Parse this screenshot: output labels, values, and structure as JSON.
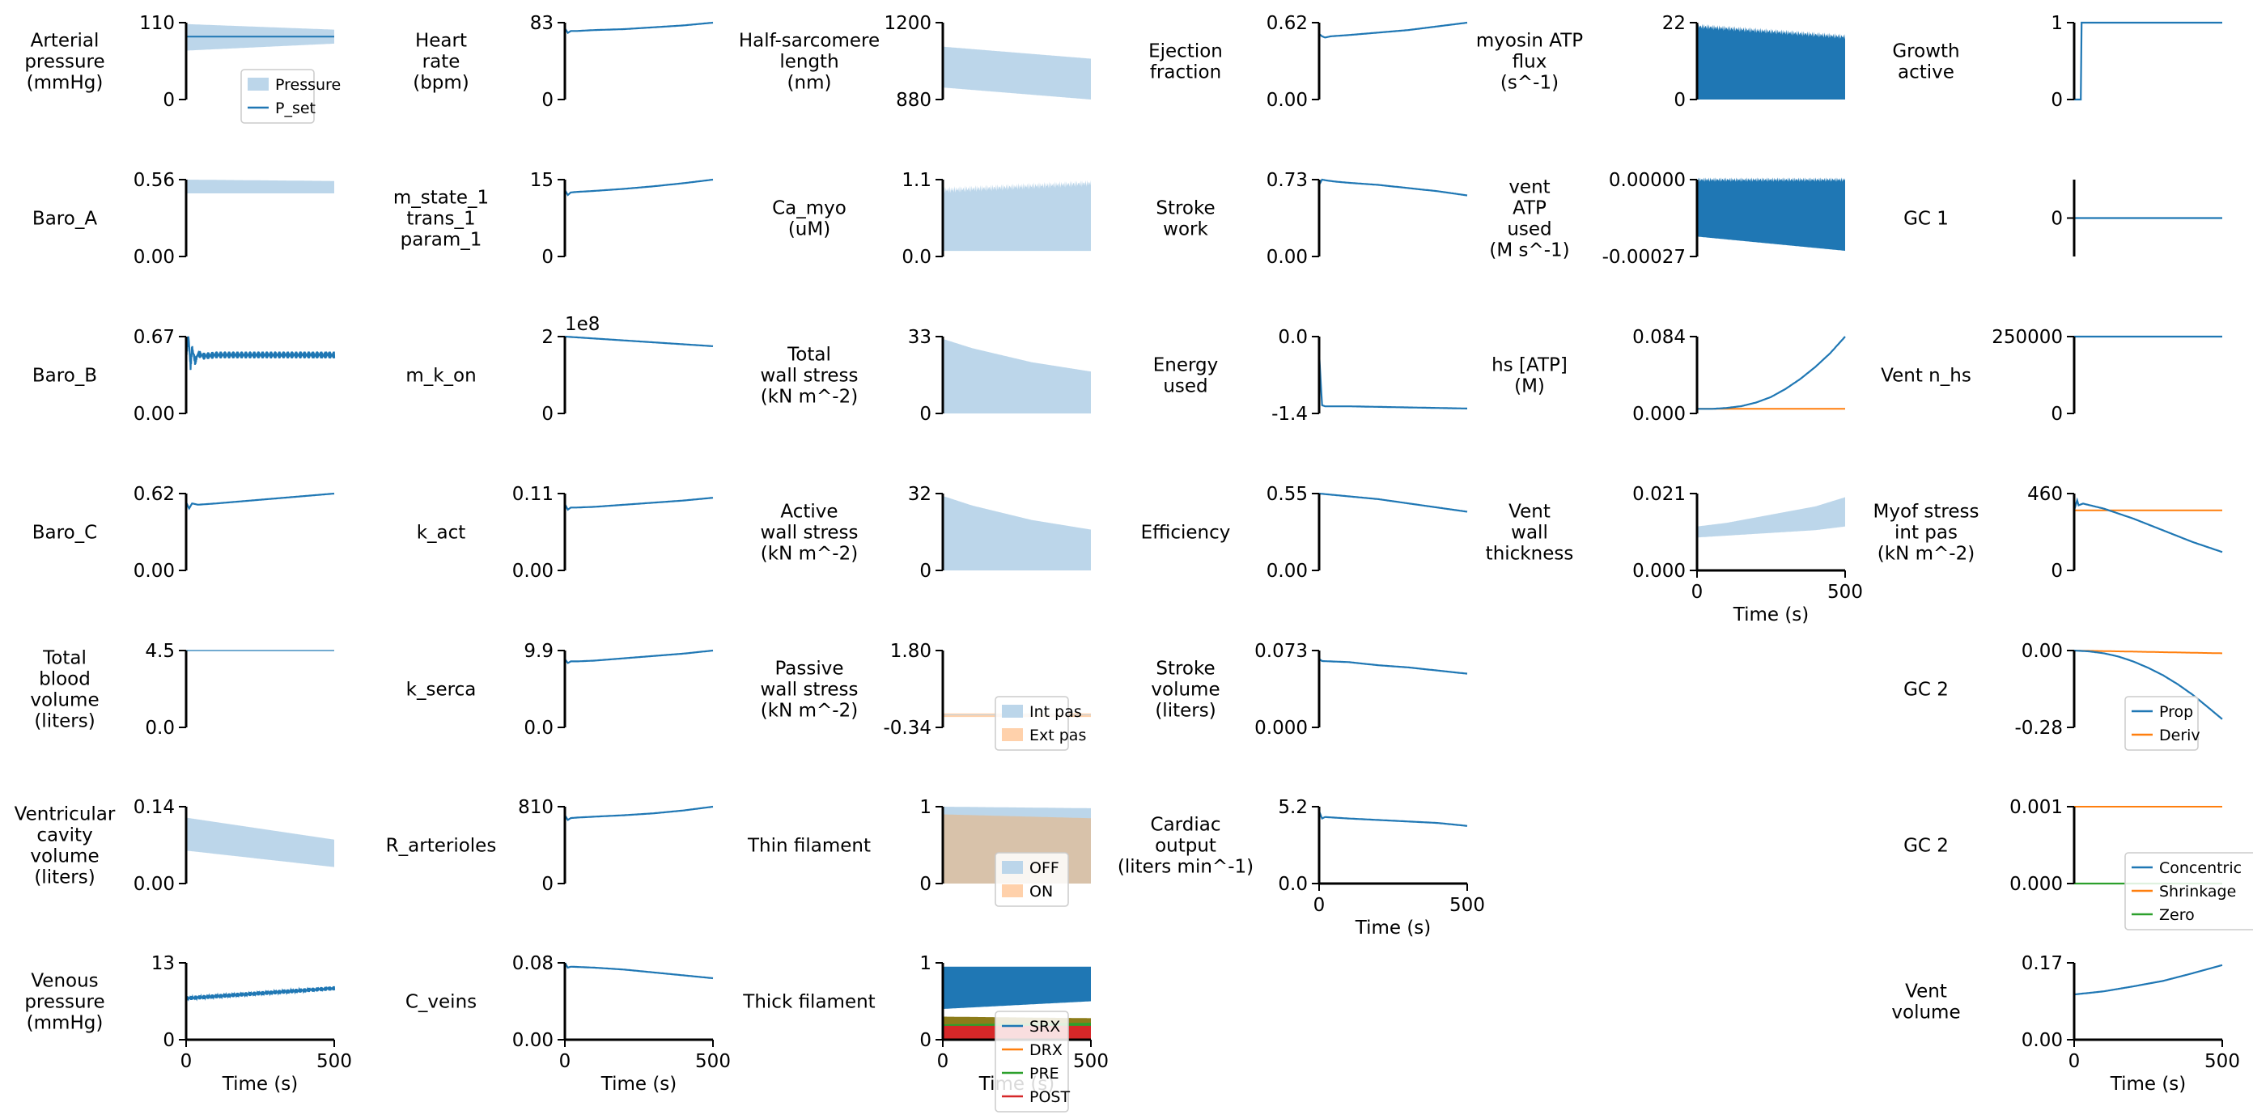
{
  "figure": {
    "x_label": "Time (s)",
    "x_ticks": [
      0,
      500
    ],
    "colors": {
      "blue": "#1f77b4",
      "light_blue": "#bcd6ea",
      "orange": "#ff7f0e",
      "light_orange": "#ffd1ab",
      "green": "#2ca02c",
      "red": "#d62728",
      "olive": "#8c7c1a",
      "tan": "#d8c2aa"
    }
  },
  "chart_data": [
    {
      "id": "arterial_pressure",
      "type": "area",
      "label": "Arterial\npressure\n(mmHg)",
      "yticks": [
        "0",
        "110"
      ],
      "ylim": [
        0,
        110
      ],
      "x": [
        0,
        500
      ],
      "lower": [
        70,
        80
      ],
      "upper": [
        108,
        100
      ],
      "line": {
        "y": [
          90,
          90
        ]
      },
      "legend": [
        "Pressure",
        "P_set"
      ],
      "legend_kinds": [
        "band",
        "line"
      ]
    },
    {
      "id": "baro_a",
      "type": "area",
      "label": "Baro_A",
      "yticks": [
        "0.00",
        "0.56"
      ],
      "ylim": [
        0,
        0.56
      ],
      "x": [
        0,
        500
      ],
      "lower": [
        0.46,
        0.46
      ],
      "upper": [
        0.56,
        0.55
      ]
    },
    {
      "id": "baro_b",
      "type": "line",
      "label": "Baro_B",
      "yticks": [
        "0.00",
        "0.67"
      ],
      "ylim": [
        0,
        0.67
      ],
      "x": [
        0,
        8,
        15,
        20,
        30,
        40,
        60,
        100,
        500
      ],
      "y": [
        0.5,
        0.67,
        0.4,
        0.58,
        0.45,
        0.52,
        0.5,
        0.51,
        0.51
      ],
      "noise_amp": 0.03
    },
    {
      "id": "baro_c",
      "type": "line",
      "label": "Baro_C",
      "yticks": [
        "0.00",
        "0.62"
      ],
      "ylim": [
        0,
        0.62
      ],
      "x": [
        0,
        10,
        20,
        40,
        100,
        200,
        300,
        400,
        500
      ],
      "y": [
        0.55,
        0.5,
        0.54,
        0.53,
        0.54,
        0.56,
        0.58,
        0.6,
        0.62
      ]
    },
    {
      "id": "total_blood_volume",
      "type": "line",
      "label": "Total\nblood\nvolume\n(liters)",
      "yticks": [
        "0.0",
        "4.5"
      ],
      "ylim": [
        0,
        4.5
      ],
      "x": [
        0,
        500
      ],
      "y": [
        4.5,
        4.5
      ],
      "thin": true
    },
    {
      "id": "ventricular_cavity_volume",
      "type": "area",
      "label": "Ventricular\ncavity\nvolume\n(liters)",
      "yticks": [
        "0.00",
        "0.14"
      ],
      "ylim": [
        0,
        0.14
      ],
      "x": [
        0,
        500
      ],
      "lower": [
        0.06,
        0.03
      ],
      "upper": [
        0.12,
        0.08
      ]
    },
    {
      "id": "venous_pressure",
      "type": "line",
      "label": "Venous\npressure\n(mmHg)",
      "yticks": [
        "0",
        "13"
      ],
      "ylim": [
        0,
        13
      ],
      "x": [
        0,
        500
      ],
      "y": [
        7,
        8.7
      ],
      "noise_amp": 0.35
    },
    {
      "id": "heart_rate",
      "type": "line",
      "label": "Heart\nrate\n(bpm)",
      "yticks": [
        "0",
        "83"
      ],
      "ylim": [
        0,
        83
      ],
      "x": [
        0,
        10,
        20,
        40,
        100,
        200,
        300,
        400,
        500
      ],
      "y": [
        77,
        72,
        74,
        74,
        75,
        76,
        78,
        80,
        83
      ]
    },
    {
      "id": "m_state_1",
      "type": "line",
      "label": "m_state_1\ntrans_1\nparam_1",
      "yticks": [
        "0",
        "15"
      ],
      "ylim": [
        0,
        15
      ],
      "x": [
        0,
        10,
        20,
        40,
        100,
        200,
        300,
        400,
        500
      ],
      "y": [
        13,
        12,
        12.5,
        12.6,
        12.8,
        13.2,
        13.7,
        14.3,
        15
      ]
    },
    {
      "id": "m_k_on",
      "type": "line",
      "label": "m_k_on",
      "yticks": [
        "0",
        "2"
      ],
      "ylim": [
        0,
        2
      ],
      "exponent": "1e8",
      "x": [
        0,
        100,
        200,
        300,
        400,
        500
      ],
      "y": [
        2,
        1.95,
        1.9,
        1.85,
        1.8,
        1.75
      ]
    },
    {
      "id": "k_act",
      "type": "line",
      "label": "k_act",
      "yticks": [
        "0.00",
        "0.11"
      ],
      "ylim": [
        0,
        0.11
      ],
      "x": [
        0,
        10,
        20,
        40,
        100,
        200,
        300,
        400,
        500
      ],
      "y": [
        0.095,
        0.087,
        0.09,
        0.09,
        0.091,
        0.094,
        0.097,
        0.1,
        0.104
      ]
    },
    {
      "id": "k_serca",
      "type": "line",
      "label": "k_serca",
      "yticks": [
        "0.0",
        "9.9"
      ],
      "ylim": [
        0,
        9.9
      ],
      "x": [
        0,
        10,
        20,
        40,
        100,
        200,
        300,
        400,
        500
      ],
      "y": [
        8.8,
        8.3,
        8.5,
        8.5,
        8.6,
        8.9,
        9.2,
        9.5,
        9.9
      ]
    },
    {
      "id": "r_arterioles",
      "type": "line",
      "label": "R_arterioles",
      "yticks": [
        "0",
        "810"
      ],
      "ylim": [
        0,
        810
      ],
      "x": [
        0,
        10,
        20,
        40,
        100,
        200,
        300,
        400,
        500
      ],
      "y": [
        720,
        670,
        690,
        695,
        705,
        720,
        740,
        770,
        810
      ]
    },
    {
      "id": "c_veins",
      "type": "line",
      "label": "C_veins",
      "yticks": [
        "0.00",
        "0.08"
      ],
      "ylim": [
        0,
        0.08
      ],
      "x": [
        0,
        10,
        20,
        100,
        200,
        300,
        400,
        500
      ],
      "y": [
        0.08,
        0.075,
        0.076,
        0.075,
        0.073,
        0.07,
        0.067,
        0.064
      ]
    },
    {
      "id": "half_sarcomere_length",
      "type": "area",
      "label": "Half-sarcomere\nlength\n(nm)",
      "yticks": [
        "880",
        "1200"
      ],
      "ylim": [
        880,
        1200
      ],
      "x": [
        0,
        500
      ],
      "lower": [
        930,
        880
      ],
      "upper": [
        1100,
        1050
      ]
    },
    {
      "id": "ca_myo",
      "type": "area",
      "label": "Ca_myo\n(uM)",
      "yticks": [
        "0.0",
        "1.1"
      ],
      "ylim": [
        0,
        1.1
      ],
      "x": [
        0,
        500
      ],
      "lower": [
        0.08,
        0.08
      ],
      "upper": [
        0.95,
        1.05
      ],
      "edge_noise": 0.05
    },
    {
      "id": "total_wall_stress",
      "type": "area",
      "label": "Total\nwall stress\n(kN m^-2)",
      "yticks": [
        "0",
        "33"
      ],
      "ylim": [
        0,
        33
      ],
      "x": [
        0,
        100,
        200,
        300,
        400,
        500
      ],
      "lower": [
        0,
        0,
        0,
        0,
        0,
        0
      ],
      "upper": [
        32,
        28,
        25,
        22,
        20,
        18
      ]
    },
    {
      "id": "active_wall_stress",
      "type": "area",
      "label": "Active\nwall stress\n(kN m^-2)",
      "yticks": [
        "0",
        "32"
      ],
      "ylim": [
        0,
        32
      ],
      "x": [
        0,
        100,
        200,
        300,
        400,
        500
      ],
      "lower": [
        0,
        0,
        0,
        0,
        0,
        0
      ],
      "upper": [
        31,
        27,
        24,
        21,
        19,
        17
      ]
    },
    {
      "id": "passive_wall_stress",
      "type": "area",
      "label": "Passive\nwall stress\n(kN m^-2)",
      "yticks": [
        "-0.34",
        "1.80"
      ],
      "ylim": [
        -0.34,
        1.8
      ],
      "x": [
        0,
        500
      ],
      "bands": [
        {
          "lower": [
            -0.05,
            -0.05
          ],
          "upper": [
            0.05,
            0.05
          ],
          "color": "light_orange"
        },
        {
          "lower": [
            0.0,
            0.0
          ],
          "upper": [
            0.02,
            0.02
          ],
          "color": "light_blue"
        }
      ],
      "legend": [
        "Int pas",
        "Ext pas"
      ],
      "legend_kinds": [
        "band_blue",
        "band_orange"
      ]
    },
    {
      "id": "thin_filament",
      "type": "area",
      "label": "Thin filament",
      "yticks": [
        "0",
        "1"
      ],
      "ylim": [
        0,
        1
      ],
      "x": [
        0,
        500
      ],
      "bands": [
        {
          "lower": [
            0.05,
            0.1
          ],
          "upper": [
            1.0,
            0.98
          ],
          "color": "light_blue"
        },
        {
          "lower": [
            0.0,
            0.0
          ],
          "upper": [
            0.9,
            0.85
          ],
          "color": "tan"
        }
      ],
      "legend": [
        "OFF",
        "ON"
      ],
      "legend_kinds": [
        "band_blue",
        "band_orange"
      ]
    },
    {
      "id": "thick_filament",
      "type": "area",
      "label": "Thick filament",
      "yticks": [
        "0",
        "1"
      ],
      "ylim": [
        0,
        1
      ],
      "x": [
        0,
        500
      ],
      "bands": [
        {
          "lower": [
            0.4,
            0.5
          ],
          "upper": [
            0.95,
            0.95
          ],
          "color": "blue"
        },
        {
          "lower": [
            0.2,
            0.2
          ],
          "upper": [
            0.3,
            0.28
          ],
          "color": "olive"
        },
        {
          "lower": [
            0.15,
            0.15
          ],
          "upper": [
            0.2,
            0.22
          ],
          "color": "green"
        },
        {
          "lower": [
            0.0,
            0.0
          ],
          "upper": [
            0.18,
            0.18
          ],
          "color": "red"
        }
      ],
      "legend": [
        "SRX",
        "DRX",
        "PRE",
        "POST"
      ],
      "legend_kinds": [
        "line_blue",
        "line_orange",
        "line_green",
        "line_red"
      ]
    },
    {
      "id": "ejection_fraction",
      "type": "line",
      "label": "Ejection\nfraction",
      "yticks": [
        "0.00",
        "0.62"
      ],
      "ylim": [
        0,
        0.62
      ],
      "x": [
        0,
        10,
        20,
        40,
        100,
        200,
        300,
        400,
        500
      ],
      "y": [
        0.53,
        0.51,
        0.5,
        0.51,
        0.52,
        0.54,
        0.56,
        0.59,
        0.62
      ]
    },
    {
      "id": "stroke_work",
      "type": "line",
      "label": "Stroke\nwork",
      "yticks": [
        "0.00",
        "0.73"
      ],
      "ylim": [
        0,
        0.73
      ],
      "x": [
        0,
        10,
        30,
        60,
        100,
        200,
        300,
        400,
        500
      ],
      "y": [
        0.68,
        0.73,
        0.72,
        0.71,
        0.7,
        0.68,
        0.65,
        0.62,
        0.58
      ]
    },
    {
      "id": "energy_used",
      "type": "line",
      "label": "Energy\nused",
      "yticks": [
        "-1.4",
        "0.0"
      ],
      "ylim": [
        -1.4,
        0
      ],
      "x": [
        0,
        10,
        20,
        100,
        200,
        300,
        400,
        500
      ],
      "y": [
        -0.3,
        -1.25,
        -1.27,
        -1.27,
        -1.28,
        -1.29,
        -1.3,
        -1.31
      ]
    },
    {
      "id": "efficiency",
      "type": "line",
      "label": "Efficiency",
      "yticks": [
        "0.00",
        "0.55"
      ],
      "ylim": [
        0,
        0.55
      ],
      "x": [
        0,
        50,
        100,
        200,
        300,
        400,
        500
      ],
      "y": [
        0.55,
        0.54,
        0.53,
        0.51,
        0.48,
        0.45,
        0.42
      ]
    },
    {
      "id": "stroke_volume",
      "type": "line",
      "label": "Stroke\nvolume\n(liters)",
      "yticks": [
        "0.000",
        "0.073"
      ],
      "ylim": [
        0,
        0.073
      ],
      "x": [
        0,
        10,
        100,
        200,
        300,
        400,
        500
      ],
      "y": [
        0.065,
        0.063,
        0.062,
        0.059,
        0.057,
        0.054,
        0.051
      ]
    },
    {
      "id": "cardiac_output",
      "type": "line",
      "label": "Cardiac\noutput\n(liters min^-1)",
      "yticks": [
        "0.0",
        "5.2"
      ],
      "ylim": [
        0,
        5.2
      ],
      "x": [
        0,
        10,
        20,
        100,
        200,
        300,
        400,
        500
      ],
      "y": [
        4.9,
        4.4,
        4.5,
        4.4,
        4.3,
        4.2,
        4.1,
        3.9
      ],
      "show_xaxis": true
    },
    {
      "id": "myosin_atp_flux",
      "type": "area",
      "label": "myosin ATP\nflux\n(s^-1)",
      "yticks": [
        "0",
        "22"
      ],
      "ylim": [
        0,
        22
      ],
      "x": [
        0,
        500
      ],
      "lower": [
        0,
        0
      ],
      "upper": [
        21,
        18
      ],
      "edge_noise": 0.8,
      "dark": true
    },
    {
      "id": "vent_atp_used",
      "type": "area",
      "label": "vent\nATP\nused\n(M s^-1)",
      "yticks": [
        "-0.00027",
        "0.00000"
      ],
      "ylim": [
        -0.00027,
        0
      ],
      "x": [
        0,
        500
      ],
      "lower": [
        -0.0002,
        -0.00025
      ],
      "upper": [
        0,
        0
      ],
      "edge_noise": 8e-06,
      "dark": true
    },
    {
      "id": "hs_atp",
      "type": "line",
      "label": "hs [ATP]\n(M)",
      "yticks": [
        "0.000",
        "0.084"
      ],
      "ylim": [
        0,
        0.084
      ],
      "x": [
        0,
        50,
        100,
        150,
        200,
        250,
        300,
        350,
        400,
        450,
        500
      ],
      "y": [
        0.005,
        0.005,
        0.006,
        0.008,
        0.012,
        0.018,
        0.027,
        0.038,
        0.051,
        0.066,
        0.084
      ],
      "extra_line": {
        "y": [
          0.005,
          0.005
        ],
        "color": "orange"
      }
    },
    {
      "id": "vent_wall_thickness",
      "type": "area",
      "label": "Vent\nwall\nthickness",
      "yticks": [
        "0.000",
        "0.021"
      ],
      "ylim": [
        0,
        0.021
      ],
      "x": [
        0,
        100,
        200,
        300,
        400,
        500
      ],
      "lower": [
        0.009,
        0.0095,
        0.01,
        0.0105,
        0.011,
        0.012
      ],
      "upper": [
        0.012,
        0.013,
        0.0145,
        0.016,
        0.0175,
        0.02
      ],
      "show_xaxis": true
    },
    {
      "id": "growth_active",
      "type": "line",
      "label": "Growth\nactive",
      "yticks": [
        "0",
        "1"
      ],
      "ylim": [
        0,
        1
      ],
      "x": [
        0,
        24,
        25,
        500
      ],
      "y": [
        0,
        0,
        1,
        1
      ]
    },
    {
      "id": "gc_1",
      "type": "line",
      "label": "GC 1",
      "yticks": [
        "0"
      ],
      "ylim": [
        -1,
        1
      ],
      "x": [
        0,
        500
      ],
      "y": [
        0,
        0
      ]
    },
    {
      "id": "vent_n_hs",
      "type": "line",
      "label": "Vent n_hs",
      "yticks": [
        "0",
        "250000"
      ],
      "ylim": [
        0,
        250000
      ],
      "x": [
        0,
        500
      ],
      "y": [
        250000,
        250000
      ]
    },
    {
      "id": "myof_stress_int_pas",
      "type": "line",
      "label": "Myof stress\nint pas\n(kN m^-2)",
      "yticks": [
        "0",
        "460"
      ],
      "ylim": [
        0,
        460
      ],
      "x": [
        0,
        10,
        15,
        30,
        100,
        200,
        300,
        400,
        500
      ],
      "y": [
        360,
        420,
        390,
        400,
        370,
        310,
        240,
        170,
        110
      ],
      "extra_line": {
        "y": [
          360,
          360
        ],
        "color": "orange"
      }
    },
    {
      "id": "gc_2a",
      "type": "line",
      "label": "GC 2",
      "yticks": [
        "-0.28",
        "0.00"
      ],
      "ylim": [
        -0.28,
        0
      ],
      "x": [
        0,
        50,
        100,
        150,
        200,
        250,
        300,
        350,
        400,
        450,
        500
      ],
      "y": [
        0,
        -0.003,
        -0.01,
        -0.022,
        -0.04,
        -0.063,
        -0.09,
        -0.123,
        -0.161,
        -0.205,
        -0.25
      ],
      "extra_line": {
        "y": [
          0,
          -0.01
        ],
        "color": "orange"
      },
      "legend": [
        "Prop",
        "Deriv"
      ],
      "legend_kinds": [
        "line_blue",
        "line_orange"
      ]
    },
    {
      "id": "gc_2b",
      "type": "line",
      "label": "GC 2",
      "yticks": [
        "0.000",
        "0.001"
      ],
      "ylim": [
        0,
        0.001
      ],
      "x": [
        0,
        500
      ],
      "y": [
        0,
        0
      ],
      "line_color": "green",
      "extra_line": {
        "y": [
          0.001,
          0.001
        ],
        "color": "orange"
      },
      "legend": [
        "Concentric",
        "Shrinkage",
        "Zero"
      ],
      "legend_kinds": [
        "line_blue",
        "line_orange",
        "line_green"
      ]
    },
    {
      "id": "vent_volume",
      "type": "line",
      "label": "Vent\nvolume",
      "yticks": [
        "0.00",
        "0.17"
      ],
      "ylim": [
        0,
        0.17
      ],
      "x": [
        0,
        100,
        200,
        300,
        400,
        500
      ],
      "y": [
        0.1,
        0.107,
        0.118,
        0.13,
        0.147,
        0.165
      ],
      "show_xaxis": true
    }
  ]
}
